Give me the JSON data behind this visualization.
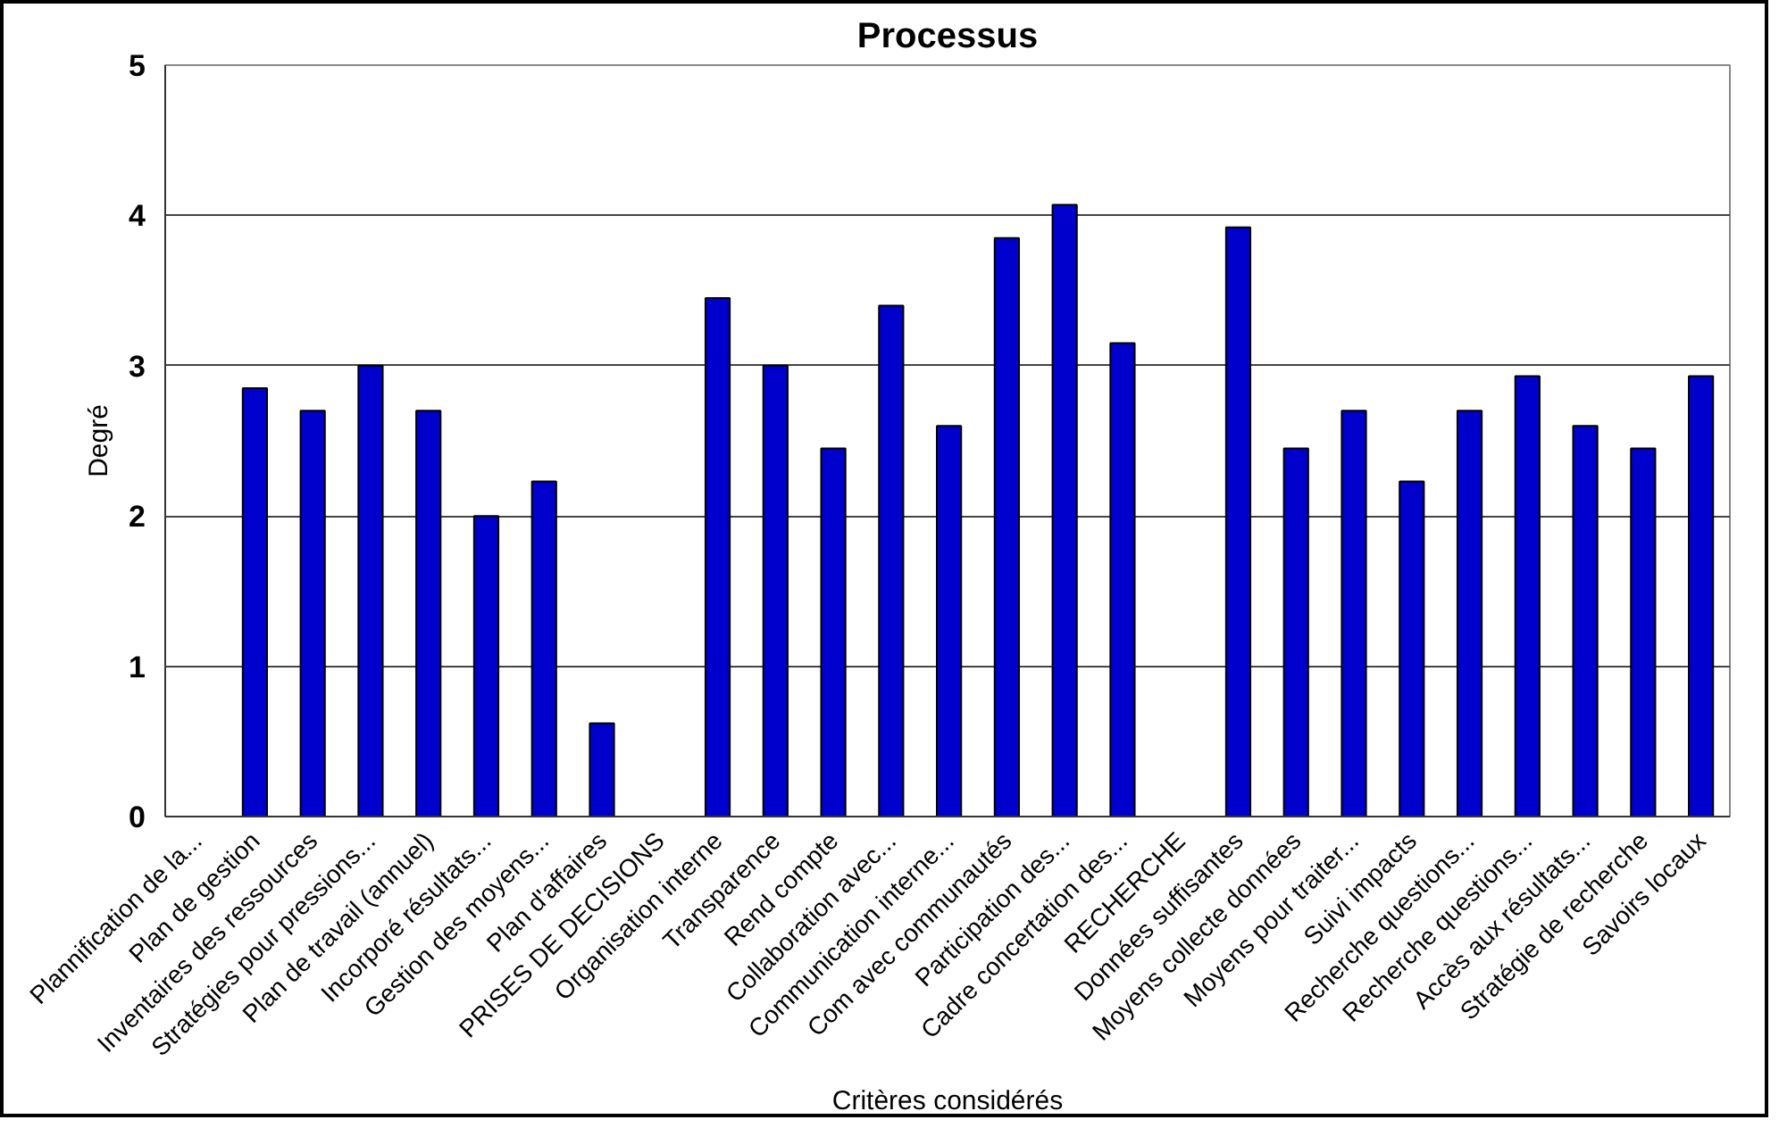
{
  "chart_data": {
    "type": "bar",
    "title": "Processus",
    "xlabel": "Critères considérés",
    "ylabel": "Degré",
    "categories": [
      "Plannification de la...",
      "Plan de gestion",
      "Inventaires des ressources",
      "Stratégies pour pressions...",
      "Plan de travail (annuel)",
      "Incorporé résultats...",
      "Gestion des moyens...",
      "Plan d'affaires",
      "PRISES DE DECISIONS",
      "Organisation interne",
      "Transparence",
      "Rend compte",
      "Collaboration avec...",
      "Communication interne...",
      "Com avec communautés",
      "Participation des...",
      "Cadre concertation des...",
      "RECHERCHE",
      "Données suffisantes",
      "Moyens collecte données",
      "Moyens pour traiter...",
      "Suivi impacts",
      "Recherche questions...",
      "Recherche questions...",
      "Accès aux résultats...",
      "Stratégie de recherche",
      "Savoirs locaux"
    ],
    "values": [
      null,
      2.85,
      2.7,
      3.0,
      2.7,
      2.0,
      2.23,
      0.62,
      null,
      3.45,
      3.0,
      2.45,
      3.4,
      2.6,
      3.85,
      4.07,
      3.15,
      null,
      3.92,
      2.45,
      2.7,
      2.23,
      2.7,
      2.93,
      2.6,
      2.45,
      2.93
    ],
    "color": "#0000cc",
    "ylim": [
      0,
      5
    ],
    "yticks": [
      0,
      1,
      2,
      3,
      4,
      5
    ],
    "grid": "y"
  }
}
